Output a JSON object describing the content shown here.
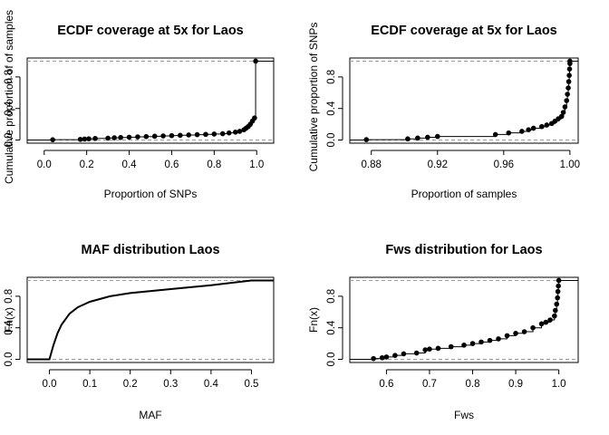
{
  "chart_data": [
    {
      "type": "scatter",
      "subtype": "ecdf",
      "title": "ECDF coverage at 5x for Laos",
      "xlabel": "Proportion of SNPs",
      "ylabel": "Cumulative proportion of of samples",
      "xlim": [
        -0.08,
        1.08
      ],
      "ylim": [
        -0.04,
        1.04
      ],
      "xticks": [
        0.0,
        0.2,
        0.4,
        0.6,
        0.8,
        1.0
      ],
      "xticklabels": [
        "0.0",
        "0.2",
        "0.4",
        "0.6",
        "0.8",
        "1.0"
      ],
      "yticks": [
        0.0,
        0.4,
        0.8
      ],
      "yticklabels": [
        "0.0",
        "0.4",
        "0.8"
      ],
      "points": [
        [
          0.04,
          0.004
        ],
        [
          0.17,
          0.008
        ],
        [
          0.19,
          0.012
        ],
        [
          0.21,
          0.016
        ],
        [
          0.24,
          0.02
        ],
        [
          0.3,
          0.024
        ],
        [
          0.33,
          0.028
        ],
        [
          0.36,
          0.032
        ],
        [
          0.4,
          0.036
        ],
        [
          0.44,
          0.04
        ],
        [
          0.48,
          0.044
        ],
        [
          0.52,
          0.048
        ],
        [
          0.56,
          0.052
        ],
        [
          0.6,
          0.056
        ],
        [
          0.64,
          0.06
        ],
        [
          0.68,
          0.064
        ],
        [
          0.72,
          0.068
        ],
        [
          0.76,
          0.072
        ],
        [
          0.8,
          0.076
        ],
        [
          0.84,
          0.08
        ],
        [
          0.87,
          0.09
        ],
        [
          0.9,
          0.1
        ],
        [
          0.92,
          0.11
        ],
        [
          0.94,
          0.13
        ],
        [
          0.95,
          0.15
        ],
        [
          0.96,
          0.17
        ],
        [
          0.97,
          0.2
        ],
        [
          0.98,
          0.24
        ],
        [
          0.99,
          0.28
        ],
        [
          0.995,
          1.0
        ]
      ],
      "hlines": [
        0,
        1
      ]
    },
    {
      "type": "scatter",
      "subtype": "ecdf",
      "title": "ECDF coverage at 5x for Laos",
      "xlabel": "Proportion of samples",
      "ylabel": "Cumulative proportion of SNPs",
      "xlim": [
        0.867,
        1.005
      ],
      "ylim": [
        -0.04,
        1.04
      ],
      "xticks": [
        0.88,
        0.92,
        0.96,
        1.0
      ],
      "xticklabels": [
        "0.88",
        "0.92",
        "0.96",
        "1.00"
      ],
      "yticks": [
        0.0,
        0.4,
        0.8
      ],
      "yticklabels": [
        "0.0",
        "0.4",
        "0.8"
      ],
      "points": [
        [
          0.877,
          0.005
        ],
        [
          0.902,
          0.015
        ],
        [
          0.908,
          0.025
        ],
        [
          0.914,
          0.035
        ],
        [
          0.92,
          0.045
        ],
        [
          0.955,
          0.07
        ],
        [
          0.963,
          0.09
        ],
        [
          0.971,
          0.11
        ],
        [
          0.975,
          0.13
        ],
        [
          0.978,
          0.15
        ],
        [
          0.983,
          0.17
        ],
        [
          0.986,
          0.19
        ],
        [
          0.989,
          0.21
        ],
        [
          0.991,
          0.24
        ],
        [
          0.993,
          0.27
        ],
        [
          0.995,
          0.3
        ],
        [
          0.996,
          0.35
        ],
        [
          0.997,
          0.42
        ],
        [
          0.998,
          0.5
        ],
        [
          0.9985,
          0.58
        ],
        [
          0.999,
          0.66
        ],
        [
          0.9993,
          0.74
        ],
        [
          0.9996,
          0.82
        ],
        [
          0.9998,
          0.9
        ],
        [
          1.0,
          0.97
        ],
        [
          1.0,
          1.0
        ]
      ],
      "hlines": [
        0,
        1
      ]
    },
    {
      "type": "line",
      "subtype": "ecdf",
      "title": "MAF distribution Laos",
      "xlabel": "MAF",
      "ylabel": "Fn(x)",
      "xlim": [
        -0.055,
        0.555
      ],
      "ylim": [
        -0.04,
        1.04
      ],
      "xticks": [
        0.0,
        0.1,
        0.2,
        0.3,
        0.4,
        0.5
      ],
      "xticklabels": [
        "0.0",
        "0.1",
        "0.2",
        "0.3",
        "0.4",
        "0.5"
      ],
      "yticks": [
        0.0,
        0.4,
        0.8
      ],
      "yticklabels": [
        "0.0",
        "0.4",
        "0.8"
      ],
      "x": [
        -0.055,
        0.0,
        0.01,
        0.02,
        0.03,
        0.05,
        0.07,
        0.1,
        0.15,
        0.2,
        0.3,
        0.4,
        0.5,
        0.555
      ],
      "y": [
        0.0,
        0.0,
        0.18,
        0.33,
        0.44,
        0.58,
        0.66,
        0.73,
        0.8,
        0.84,
        0.89,
        0.94,
        1.0,
        1.0
      ],
      "hlines": [
        0,
        1
      ]
    },
    {
      "type": "scatter",
      "subtype": "ecdf",
      "title": "Fws distribution for Laos",
      "xlabel": "Fws",
      "ylabel": "Fn(x)",
      "xlim": [
        0.515,
        1.045
      ],
      "ylim": [
        -0.04,
        1.04
      ],
      "xticks": [
        0.6,
        0.7,
        0.8,
        0.9,
        1.0
      ],
      "xticklabels": [
        "0.6",
        "0.7",
        "0.8",
        "0.9",
        "1.0"
      ],
      "yticks": [
        0.0,
        0.4,
        0.8
      ],
      "yticklabels": [
        "0.0",
        "0.4",
        "0.8"
      ],
      "points": [
        [
          0.57,
          0.01
        ],
        [
          0.59,
          0.02
        ],
        [
          0.6,
          0.03
        ],
        [
          0.62,
          0.05
        ],
        [
          0.64,
          0.07
        ],
        [
          0.67,
          0.08
        ],
        [
          0.69,
          0.12
        ],
        [
          0.7,
          0.13
        ],
        [
          0.72,
          0.14
        ],
        [
          0.75,
          0.16
        ],
        [
          0.78,
          0.18
        ],
        [
          0.8,
          0.2
        ],
        [
          0.82,
          0.22
        ],
        [
          0.84,
          0.24
        ],
        [
          0.86,
          0.26
        ],
        [
          0.88,
          0.3
        ],
        [
          0.9,
          0.33
        ],
        [
          0.92,
          0.35
        ],
        [
          0.94,
          0.4
        ],
        [
          0.96,
          0.45
        ],
        [
          0.97,
          0.47
        ],
        [
          0.98,
          0.5
        ],
        [
          0.99,
          0.55
        ],
        [
          0.992,
          0.62
        ],
        [
          0.995,
          0.7
        ],
        [
          0.997,
          0.78
        ],
        [
          0.998,
          0.86
        ],
        [
          0.999,
          0.93
        ],
        [
          1.0,
          1.0
        ]
      ],
      "hlines": [
        0,
        1
      ]
    }
  ]
}
